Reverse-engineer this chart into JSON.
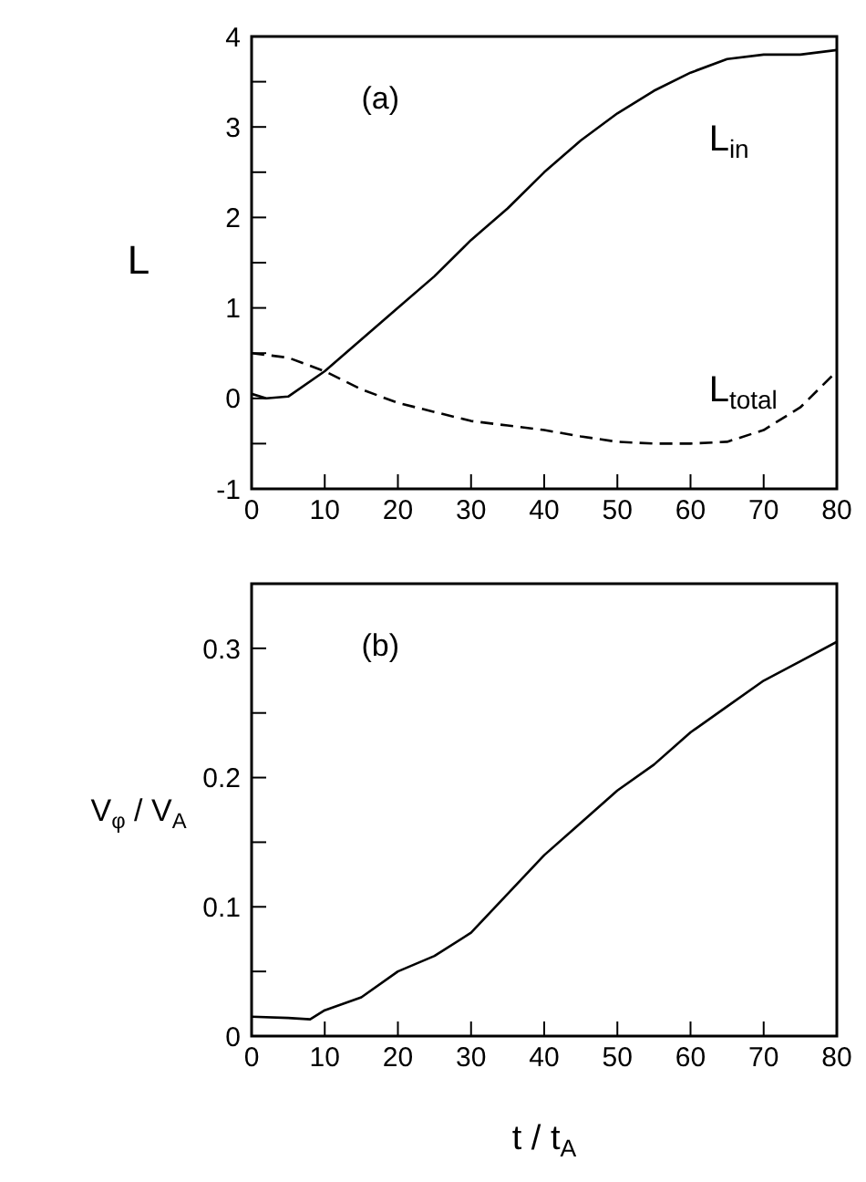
{
  "chart_data": [
    {
      "type": "line",
      "annotations": [
        "(a)"
      ],
      "ylabel": "L",
      "xlim": [
        0,
        80
      ],
      "xticks": [
        0,
        10,
        20,
        30,
        40,
        50,
        60,
        70,
        80
      ],
      "ylim": [
        -1,
        4
      ],
      "yticks": [
        -1,
        {
          "value": -0.5,
          "label": null
        },
        0,
        {
          "value": 0.5,
          "label": null
        },
        1,
        {
          "value": 1.5,
          "label": null
        },
        2,
        {
          "value": 2.5,
          "label": null
        },
        3,
        {
          "value": 3.5,
          "label": null
        },
        4
      ],
      "series": [
        {
          "name": "L$_{in}$",
          "color": "#000000",
          "line_style": "solid",
          "x": [
            0,
            2,
            5,
            10,
            15,
            20,
            25,
            30,
            35,
            40,
            45,
            50,
            55,
            60,
            65,
            70,
            75,
            80
          ],
          "values": [
            0.05,
            0,
            0.02,
            0.3,
            0.65,
            1,
            1.35,
            1.75,
            2.1,
            2.5,
            2.85,
            3.15,
            3.4,
            3.6,
            3.75,
            3.8,
            3.8,
            3.85
          ]
        },
        {
          "name": "L$_{total}$",
          "color": "#000000",
          "line_style": "dashed",
          "x": [
            0,
            5,
            10,
            15,
            20,
            25,
            30,
            35,
            40,
            45,
            50,
            55,
            60,
            65,
            70,
            75,
            80
          ],
          "values": [
            0.5,
            0.45,
            0.3,
            0.1,
            -0.05,
            -0.15,
            -0.25,
            -0.3,
            -0.35,
            -0.42,
            -0.48,
            -0.5,
            -0.5,
            -0.48,
            -0.35,
            -0.1,
            0.3
          ]
        }
      ]
    },
    {
      "type": "line",
      "annotations": [
        "(b)"
      ],
      "xlabel": "t / t$_{A}$",
      "ylabel": "V$_{φ}$ / V$_{A}$",
      "xlim": [
        0,
        80
      ],
      "xticks": [
        0,
        10,
        20,
        30,
        40,
        50,
        60,
        70,
        80
      ],
      "ylim": [
        0,
        0.35
      ],
      "yticks": [
        0,
        {
          "value": 0.05,
          "label": null
        },
        0.1,
        {
          "value": 0.15,
          "label": null
        },
        0.2,
        {
          "value": 0.25,
          "label": null
        },
        0.3
      ],
      "series": [
        {
          "color": "#000000",
          "line_style": "solid",
          "x": [
            0,
            5,
            8,
            10,
            15,
            20,
            25,
            30,
            35,
            40,
            45,
            50,
            55,
            60,
            65,
            70,
            75,
            80
          ],
          "values": [
            0.015,
            0.014,
            0.013,
            0.02,
            0.03,
            0.05,
            0.062,
            0.08,
            0.11,
            0.14,
            0.165,
            0.19,
            0.21,
            0.235,
            0.255,
            0.275,
            0.29,
            0.305
          ]
        }
      ]
    }
  ]
}
